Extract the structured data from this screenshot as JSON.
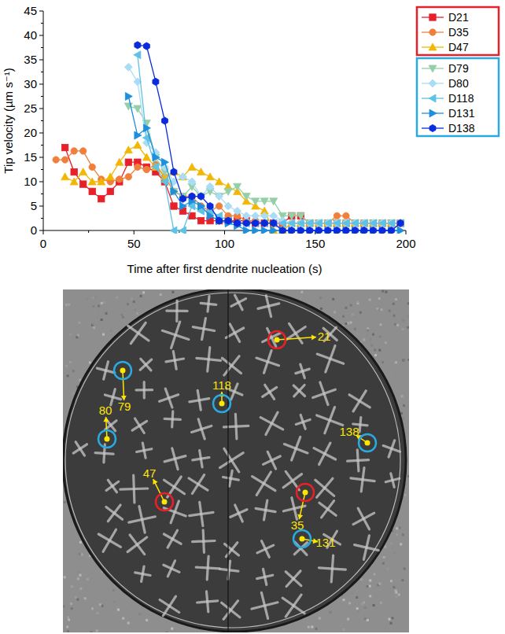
{
  "chart_data": {
    "type": "line",
    "x_label": "Time after first dendrite nucleation (s)",
    "y_label": "Tip velocity (µm s⁻¹)",
    "xlim": [
      0,
      200
    ],
    "xticks": [
      0,
      50,
      100,
      150,
      200
    ],
    "ylim": [
      0,
      45
    ],
    "yticks": [
      0,
      5,
      10,
      15,
      20,
      25,
      30,
      35,
      40,
      45
    ],
    "legend": "right",
    "x": [
      7,
      12,
      17,
      22,
      27,
      32,
      37,
      42,
      47,
      52,
      57,
      62,
      67,
      72,
      77,
      82,
      87,
      92,
      97,
      102,
      107,
      112,
      117,
      122,
      127,
      132,
      137,
      142,
      147,
      152,
      157,
      162,
      167,
      172,
      177,
      182,
      187,
      192,
      197
    ],
    "series": [
      {
        "name": "D21",
        "color": "#e8202a",
        "marker": "square",
        "values": [
          null,
          17,
          12,
          9.5,
          8,
          6.5,
          8,
          10,
          14,
          14,
          13,
          12,
          10,
          5,
          4,
          3,
          2,
          2,
          2,
          2,
          2,
          2,
          1.5,
          1.5,
          1.5,
          1.5,
          3,
          3,
          1.5,
          1.5,
          1.5,
          1.5,
          1.5,
          1.5,
          1.5,
          1.5,
          1.5,
          1.5,
          1.5
        ]
      },
      {
        "name": "D35",
        "color": "#f07f3c",
        "marker": "circle",
        "values": [
          14.5,
          14.5,
          16.3,
          16.3,
          13,
          10.5,
          10,
          10.5,
          11,
          13,
          12.5,
          13.5,
          11,
          8,
          7,
          7,
          5,
          4,
          5,
          3,
          3,
          2,
          2,
          1.5,
          1.5,
          1.5,
          1.5,
          1.5,
          1.5,
          1.5,
          1.5,
          3,
          3,
          1.5,
          1.5,
          1.5,
          1.5,
          1.5,
          1.5
        ]
      },
      {
        "name": "D47",
        "color": "#f2b705",
        "marker": "triangle-up",
        "values": [
          null,
          11,
          10,
          12,
          10,
          10,
          11,
          14,
          16.5,
          17.5,
          15,
          13,
          11,
          12,
          11,
          13,
          12,
          11,
          10,
          9,
          8,
          6,
          5,
          4,
          0,
          0,
          1.5,
          1.5,
          1.5,
          1.5,
          1.5,
          1.5,
          1.5,
          1.5,
          1.5,
          1.5,
          1.5,
          1.5,
          1.5
        ]
      },
      {
        "name": "D79",
        "color": "#94cfa8",
        "marker": "triangle-down",
        "values": [
          null,
          null,
          null,
          null,
          null,
          null,
          null,
          null,
          25.5,
          25,
          22,
          15,
          12,
          8,
          7,
          9,
          7,
          8,
          7,
          8,
          9,
          7,
          6,
          6,
          6,
          3,
          3,
          3,
          1.5,
          1.5,
          1.5,
          1.5,
          1.5,
          1.5,
          1.5,
          1.5,
          1.5,
          1.5,
          1.5
        ]
      },
      {
        "name": "D80",
        "color": "#a9dcf5",
        "marker": "diamond",
        "values": [
          null,
          null,
          null,
          null,
          null,
          null,
          null,
          null,
          33.5,
          30.5,
          18,
          16,
          13,
          10,
          11,
          10,
          7,
          9,
          7,
          5,
          4,
          3,
          3,
          3,
          3,
          2,
          1.5,
          1.5,
          1.5,
          1.5,
          1.5,
          1.5,
          1.5,
          1.5,
          1.5,
          1.5,
          1.5,
          1.5,
          1.5
        ]
      },
      {
        "name": "D118",
        "color": "#5ec2e6",
        "marker": "triangle-left",
        "values": [
          null,
          null,
          null,
          null,
          null,
          null,
          null,
          null,
          null,
          36,
          19,
          13,
          10,
          0,
          0,
          5,
          4,
          4,
          3,
          2,
          1.5,
          1.5,
          1.5,
          1.5,
          1.5,
          1.5,
          1.5,
          1.5,
          1.5,
          1.5,
          1.5,
          1.5,
          1.5,
          1.5,
          1.5,
          1.5,
          1.5,
          1.5,
          1.5
        ]
      },
      {
        "name": "D131",
        "color": "#1e8fdc",
        "marker": "triangle-right",
        "values": [
          null,
          null,
          null,
          null,
          null,
          null,
          null,
          null,
          27.5,
          19.5,
          21,
          15,
          14,
          8,
          5,
          6,
          5,
          3,
          2,
          1.5,
          1,
          0,
          0,
          0,
          0,
          0,
          0,
          0,
          0,
          0,
          0,
          0,
          0,
          0,
          0,
          0,
          0,
          0,
          0
        ]
      },
      {
        "name": "D138",
        "color": "#0a2bdc",
        "marker": "hexagon",
        "values": [
          null,
          null,
          null,
          null,
          null,
          null,
          null,
          null,
          null,
          38,
          37.8,
          30.5,
          22.5,
          12,
          6.5,
          7,
          7,
          5,
          2,
          2,
          1.5,
          1.5,
          1.5,
          1.5,
          1.5,
          0,
          0,
          0,
          0,
          0,
          0,
          0,
          0,
          0,
          0,
          0,
          0,
          0,
          1.5
        ]
      }
    ]
  },
  "image": {
    "annotations": [
      {
        "text": "21",
        "color": "#e8202a"
      },
      {
        "text": "79",
        "color": "#29abe2"
      },
      {
        "text": "80",
        "color": "#29abe2"
      },
      {
        "text": "118",
        "color": "#29abe2"
      },
      {
        "text": "138",
        "color": "#29abe2"
      },
      {
        "text": "47",
        "color": "#e8202a"
      },
      {
        "text": "35",
        "color": "#e8202a"
      },
      {
        "text": "131",
        "color": "#29abe2"
      }
    ]
  }
}
